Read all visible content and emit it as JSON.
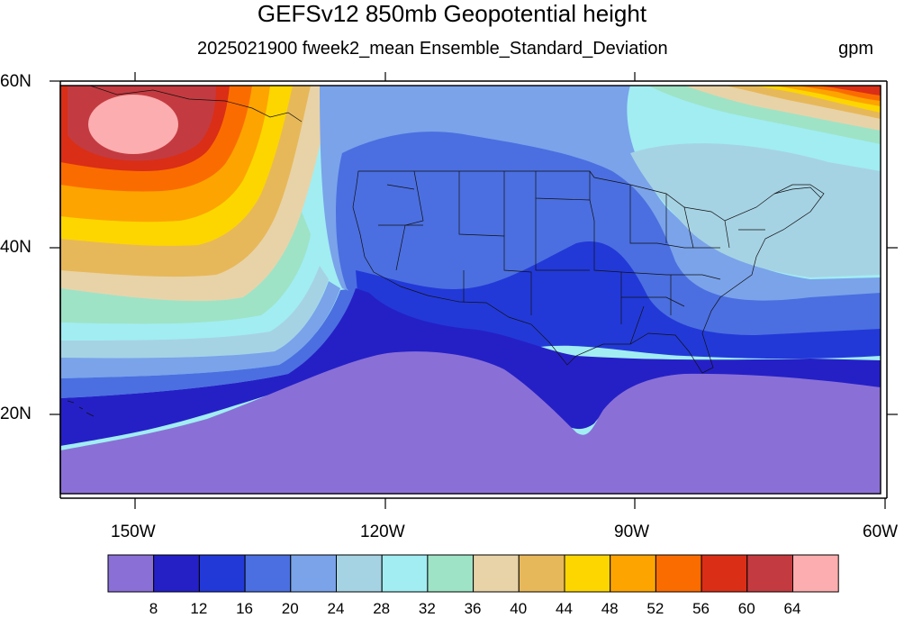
{
  "title": "GEFSv12 850mb Geopotential height",
  "subtitle": "2025021900 fweek2_mean Ensemble_Standard_Deviation",
  "units": "gpm",
  "map": {
    "lat_labels": [
      "60N",
      "40N",
      "20N"
    ],
    "lon_labels": [
      "150W",
      "120W",
      "90W",
      "60W"
    ]
  },
  "colorbar": {
    "colors": [
      "#8a70d6",
      "#2520c6",
      "#2239d8",
      "#4b6fe0",
      "#7aa3ea",
      "#a6d3e4",
      "#a1edf2",
      "#9ee3c6",
      "#e8d3a8",
      "#e7b85a",
      "#fdd600",
      "#fda400",
      "#fb6c00",
      "#da2e17",
      "#c33b40",
      "#fcadaf"
    ],
    "labels": [
      "8",
      "12",
      "16",
      "20",
      "24",
      "28",
      "32",
      "36",
      "40",
      "44",
      "48",
      "52",
      "56",
      "60",
      "64"
    ]
  }
}
